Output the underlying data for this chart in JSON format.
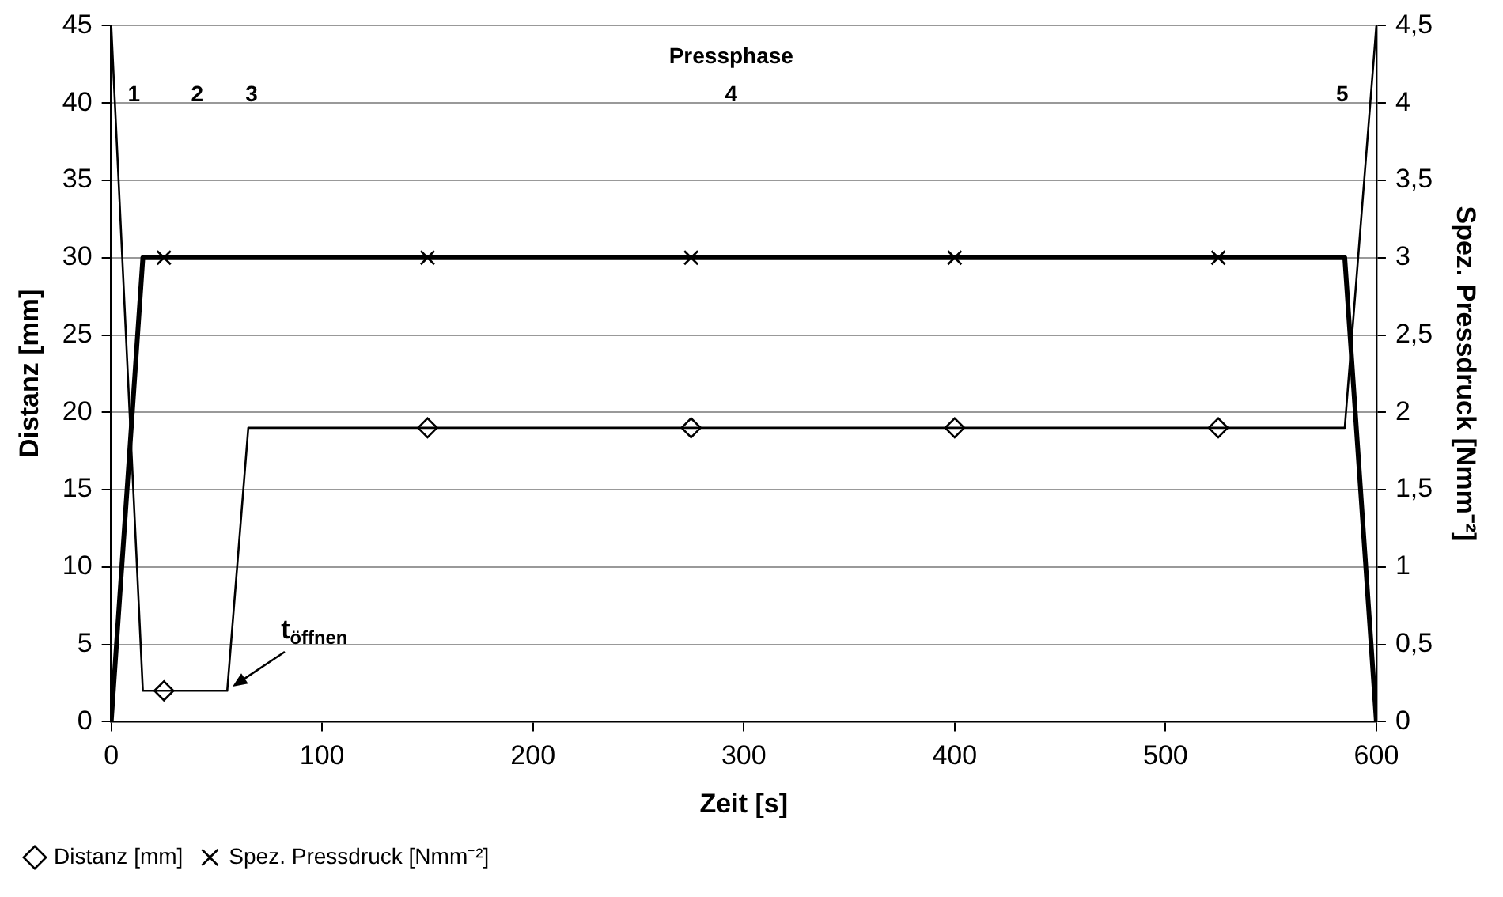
{
  "chart_data": {
    "type": "line",
    "xlabel": "Zeit [s]",
    "ylabel": "Distanz [mm]",
    "y2label": "Spez. Pressdruck [Nmm⁻²]",
    "xlim": [
      0,
      600
    ],
    "xticks": [
      0,
      100,
      200,
      300,
      400,
      500,
      600
    ],
    "ylim": [
      0,
      45
    ],
    "yticks": [
      0,
      5,
      10,
      15,
      20,
      25,
      30,
      35,
      40,
      45
    ],
    "y2lim": [
      0,
      4.5
    ],
    "y2ticks": [
      0,
      {
        "value": 0.5,
        "label": "0,5"
      },
      1,
      {
        "value": 1.5,
        "label": "1,5"
      },
      2,
      {
        "value": 2.5,
        "label": "2,5"
      },
      3,
      {
        "value": 3.5,
        "label": "3,5"
      },
      4,
      {
        "value": 4.5,
        "label": "4,5"
      }
    ],
    "grid": "y",
    "legend": "bottom left",
    "series": [
      {
        "color": "#000000",
        "marker": "none",
        "x": [
          0,
          15,
          55,
          65,
          585,
          600
        ],
        "values": [
          45,
          2,
          2,
          19,
          19,
          45
        ]
      },
      {
        "color": "#000000",
        "marker": "none",
        "axis": "y2",
        "x": [
          0,
          15,
          585,
          600
        ],
        "values": [
          0,
          3,
          3,
          0
        ]
      },
      {
        "type": "scatter",
        "name": "Distanz [mm]",
        "color": "#000000",
        "marker": "diamond",
        "x": [
          25,
          150,
          275,
          400,
          525
        ],
        "values": [
          2,
          19,
          19,
          19,
          19
        ]
      },
      {
        "type": "scatter",
        "name": "Spez. Pressdruck [Nmm⁻²]",
        "color": "#000000",
        "marker": "cross",
        "axis": "y2",
        "x": [
          25,
          150,
          275,
          400,
          525
        ],
        "values": [
          3,
          3,
          3,
          3,
          3
        ]
      }
    ],
    "annotations": [
      "Pressphase",
      "1",
      "2",
      "3",
      "4",
      "5",
      {
        "text": "t$_{öffnen}$",
        "x": 55,
        "y": 2
      }
    ]
  }
}
